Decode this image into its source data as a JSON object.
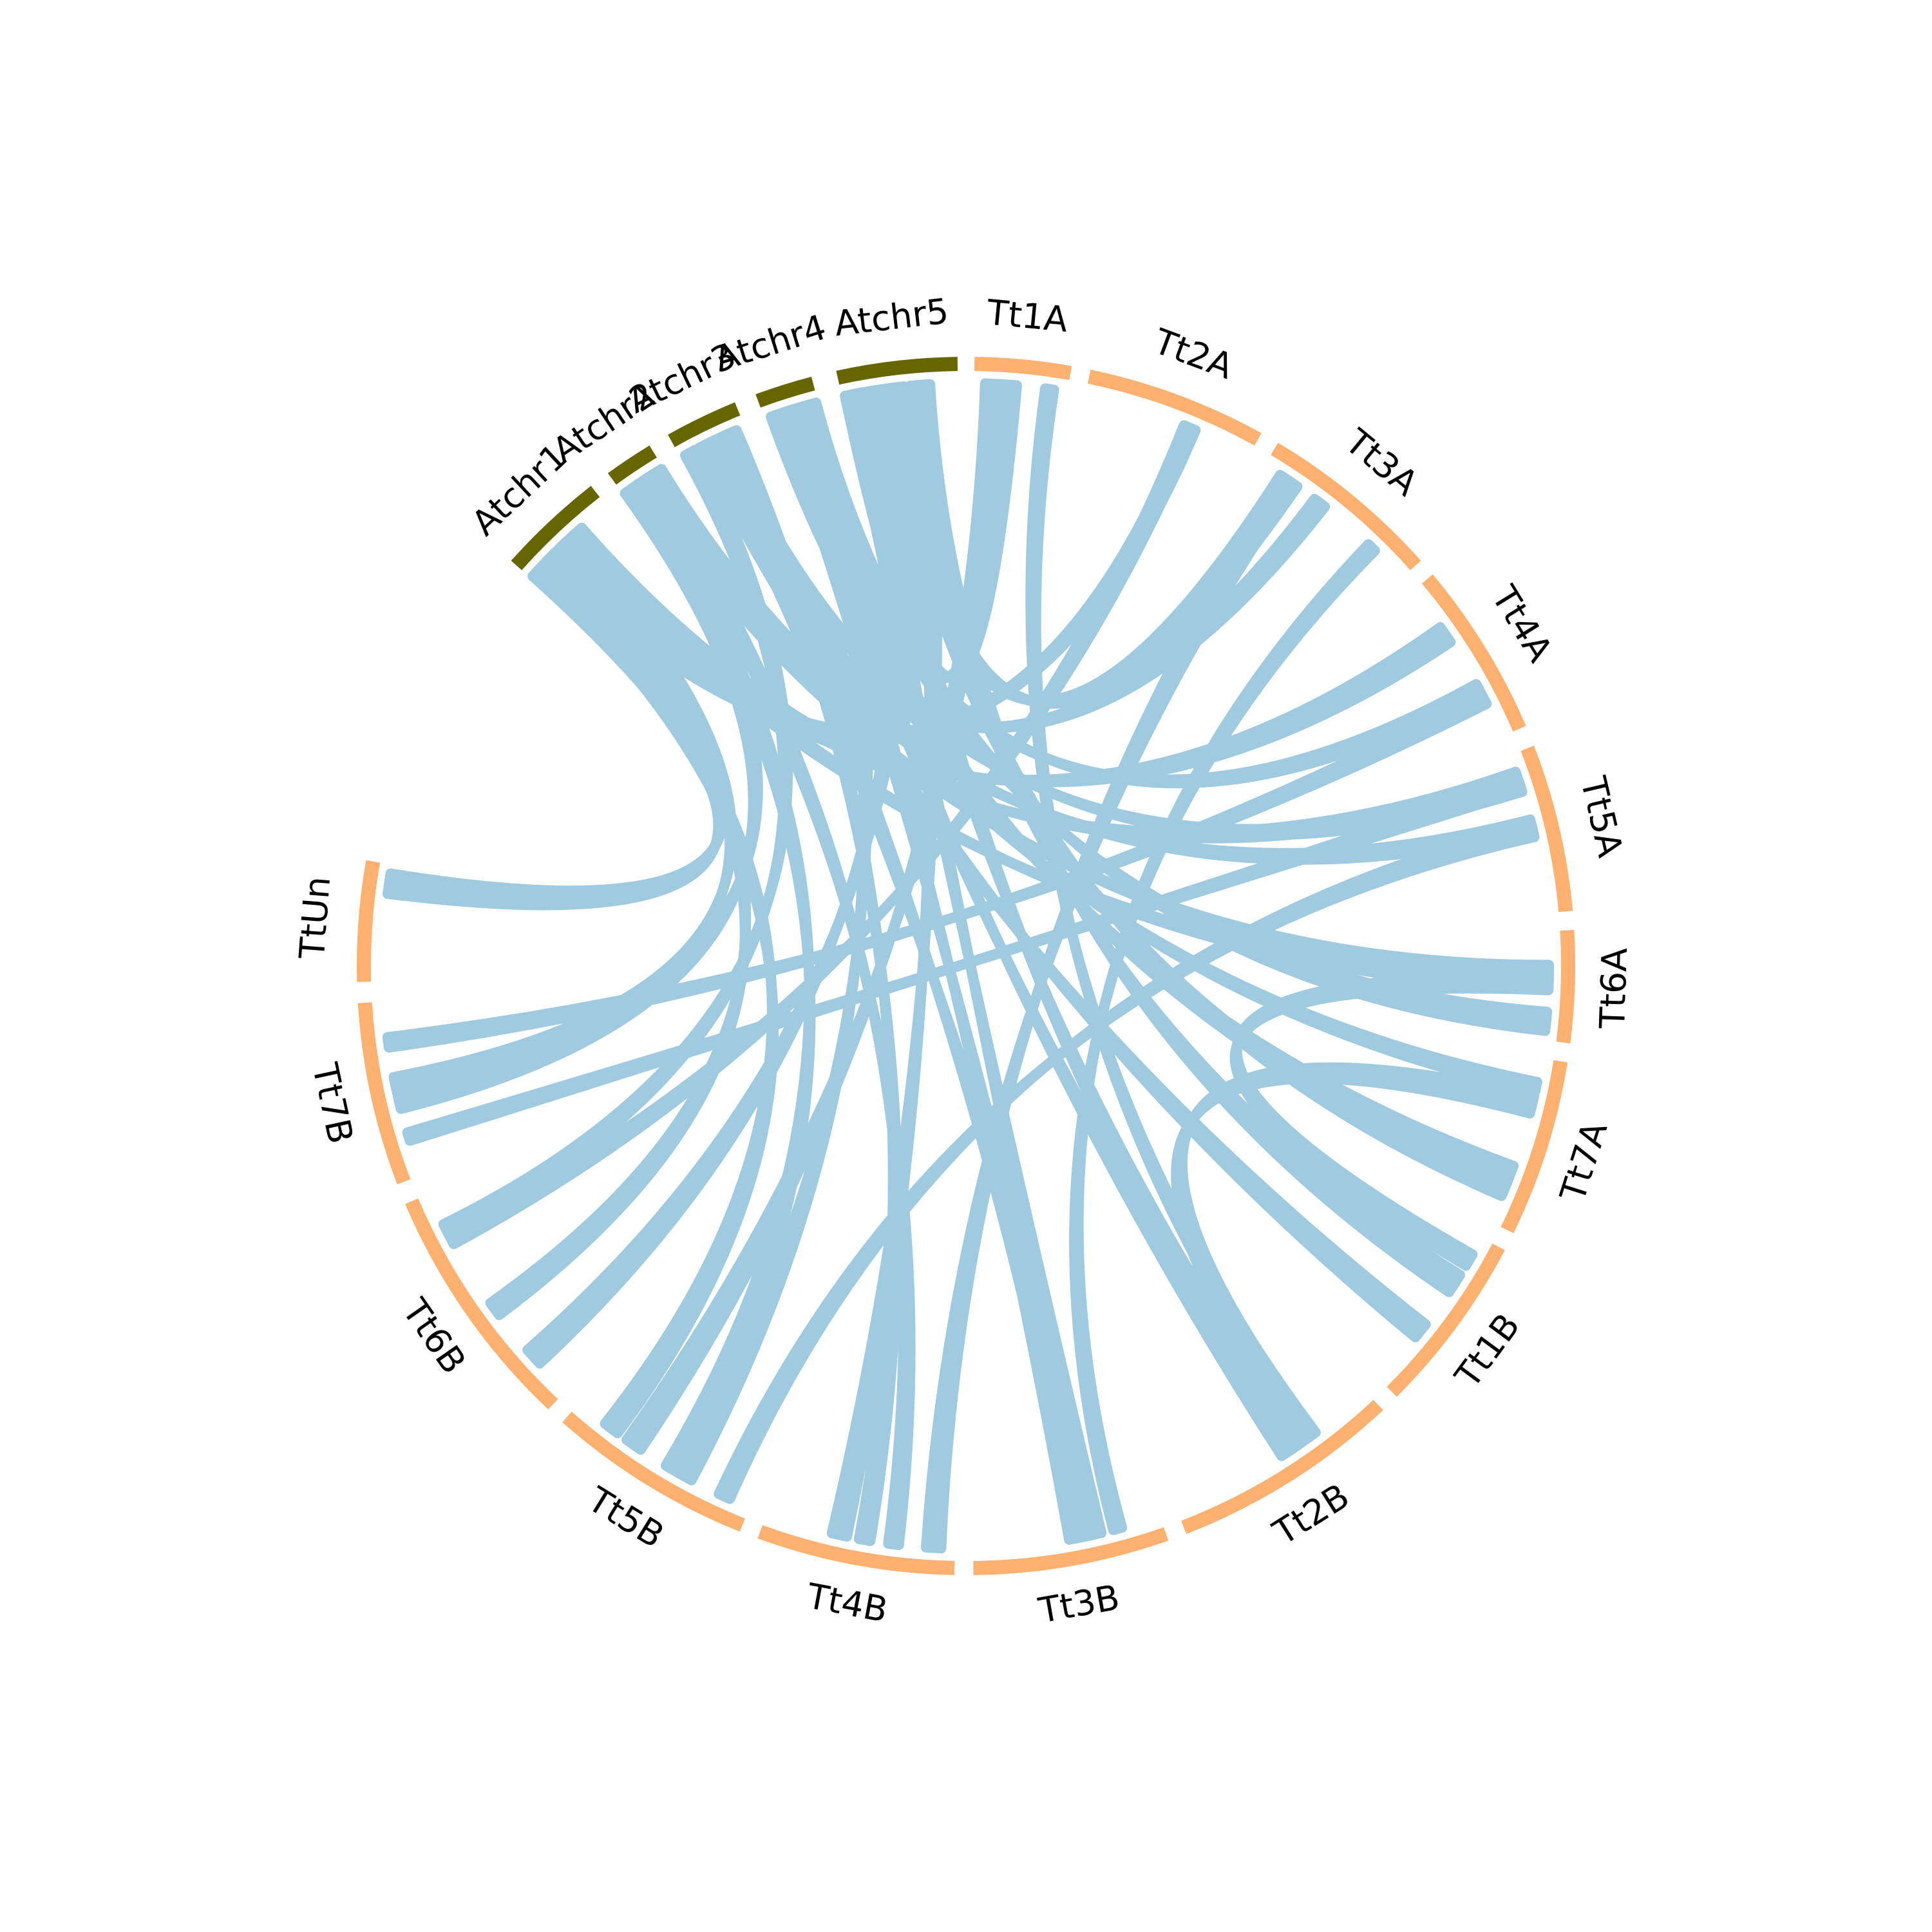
{
  "diagram": {
    "type": "circos-synteny",
    "colors": {
      "arabidopsis": "#666600",
      "wheat": "#FDB170",
      "links": "#A0CAE0",
      "background": "#FFFFFF"
    },
    "chromosomes": [
      {
        "id": "Atchr1",
        "label": "Atchr1",
        "group": "arabidopsis"
      },
      {
        "id": "Atchr2",
        "label": "Atchr2",
        "group": "arabidopsis"
      },
      {
        "id": "Atchr3",
        "label": "Atchr3",
        "group": "arabidopsis"
      },
      {
        "id": "Atchr4",
        "label": "Atchr4",
        "group": "arabidopsis"
      },
      {
        "id": "Atchr5",
        "label": "Atchr5",
        "group": "arabidopsis"
      },
      {
        "id": "Tt1A",
        "label": "Tt1A",
        "group": "wheat"
      },
      {
        "id": "Tt2A",
        "label": "Tt2A",
        "group": "wheat"
      },
      {
        "id": "Tt3A",
        "label": "Tt3A",
        "group": "wheat"
      },
      {
        "id": "Tt4A",
        "label": "Tt4A",
        "group": "wheat"
      },
      {
        "id": "Tt5A",
        "label": "Tt5A",
        "group": "wheat"
      },
      {
        "id": "Tt6A",
        "label": "Tt6A",
        "group": "wheat"
      },
      {
        "id": "Tt7A",
        "label": "Tt7A",
        "group": "wheat"
      },
      {
        "id": "Tt1B",
        "label": "Tt1B",
        "group": "wheat"
      },
      {
        "id": "Tt2B",
        "label": "Tt2B",
        "group": "wheat"
      },
      {
        "id": "Tt3B",
        "label": "Tt3B",
        "group": "wheat"
      },
      {
        "id": "Tt4B",
        "label": "Tt4B",
        "group": "wheat"
      },
      {
        "id": "Tt5B",
        "label": "Tt5B",
        "group": "wheat"
      },
      {
        "id": "Tt6B",
        "label": "Tt6B",
        "group": "wheat"
      },
      {
        "id": "Tt7B",
        "label": "Tt7B",
        "group": "wheat"
      },
      {
        "id": "TtUn",
        "label": "TtUn",
        "group": "wheat"
      }
    ],
    "links": [
      [
        "Atchr1",
        "Tt7B"
      ],
      [
        "Atchr1",
        "Tt6B"
      ],
      [
        "Atchr1",
        "Tt5B"
      ],
      [
        "Atchr1",
        "Tt4A"
      ],
      [
        "Atchr1",
        "Tt5A"
      ],
      [
        "Atchr1",
        "Tt2A"
      ],
      [
        "Atchr1",
        "Tt6A"
      ],
      [
        "Atchr1",
        "TtUn"
      ],
      [
        "Atchr2",
        "Tt7B"
      ],
      [
        "Atchr2",
        "Tt5B"
      ],
      [
        "Atchr2",
        "Tt4B"
      ],
      [
        "Atchr2",
        "Tt5A"
      ],
      [
        "Atchr2",
        "Tt6A"
      ],
      [
        "Atchr2",
        "Tt3A"
      ],
      [
        "Atchr3",
        "Tt6B"
      ],
      [
        "Atchr3",
        "Tt4B"
      ],
      [
        "Atchr3",
        "Tt3B"
      ],
      [
        "Atchr3",
        "Tt5A"
      ],
      [
        "Atchr3",
        "Tt7A"
      ],
      [
        "Atchr3",
        "Tt1B"
      ],
      [
        "Atchr4",
        "Tt5B"
      ],
      [
        "Atchr4",
        "Tt3B"
      ],
      [
        "Atchr4",
        "Tt2B"
      ],
      [
        "Atchr4",
        "Tt4A"
      ],
      [
        "Atchr4",
        "Tt7A"
      ],
      [
        "Atchr4",
        "Tt6A"
      ],
      [
        "Atchr5",
        "Tt4B"
      ],
      [
        "Atchr5",
        "Tt3B"
      ],
      [
        "Atchr5",
        "Tt2B"
      ],
      [
        "Atchr5",
        "Tt1B"
      ],
      [
        "Atchr5",
        "Tt1A"
      ],
      [
        "Atchr5",
        "Tt3A"
      ],
      [
        "Atchr5",
        "Tt7A"
      ],
      [
        "Atchr5",
        "Tt6B"
      ],
      [
        "Tt1A",
        "Tt2B"
      ],
      [
        "Tt1A",
        "Tt5B"
      ],
      [
        "Tt2A",
        "Tt6B"
      ],
      [
        "Tt3A",
        "Tt3B"
      ],
      [
        "Tt3A",
        "Tt4B"
      ],
      [
        "Tt4A",
        "Tt7B"
      ],
      [
        "Tt5A",
        "Tt5B"
      ],
      [
        "Tt6A",
        "Tt1B"
      ],
      [
        "Tt7A",
        "Tt2B"
      ],
      [
        "Tt5A",
        "Tt7B"
      ]
    ]
  }
}
